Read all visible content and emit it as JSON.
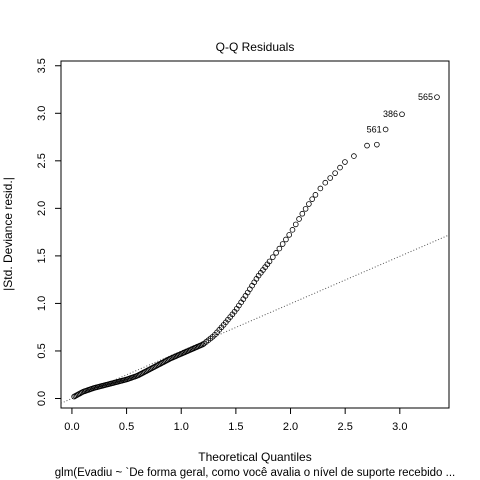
{
  "chart_data": {
    "type": "scatter",
    "title": "Q-Q Residuals",
    "xlabel": "Theoretical Quantiles",
    "ylabel": "|Std. Deviance resid.|",
    "caption": "glm(Evadiu ~ `De forma geral, como você avalia o nível de suporte recebido  ...",
    "xlim": [
      -0.1,
      3.45
    ],
    "ylim": [
      -0.1,
      3.55
    ],
    "x_ticks": [
      "0.0",
      "0.5",
      "1.0",
      "1.5",
      "2.0",
      "2.5",
      "3.0"
    ],
    "y_ticks": [
      "0.0",
      "0.5",
      "1.0",
      "1.5",
      "2.0",
      "2.5",
      "3.0",
      "3.5"
    ],
    "grid": false,
    "reference_line": {
      "x": [
        -0.1,
        3.45
      ],
      "y": [
        -0.05,
        1.72
      ],
      "style": "dotted"
    },
    "labeled_points": [
      {
        "label": "565",
        "x": 3.34,
        "y": 3.17
      },
      {
        "label": "386",
        "x": 3.02,
        "y": 2.99
      },
      {
        "label": "561",
        "x": 2.87,
        "y": 2.83
      }
    ],
    "curve": {
      "x": [
        0.02,
        0.1,
        0.2,
        0.3,
        0.4,
        0.5,
        0.6,
        0.7,
        0.8,
        0.9,
        1.0,
        1.1,
        1.2,
        1.3,
        1.4,
        1.5,
        1.6,
        1.7,
        1.8,
        1.9,
        2.0,
        2.1,
        2.2,
        2.3,
        2.4,
        2.5
      ],
      "y": [
        0.02,
        0.07,
        0.11,
        0.14,
        0.17,
        0.2,
        0.24,
        0.3,
        0.36,
        0.42,
        0.47,
        0.52,
        0.57,
        0.66,
        0.79,
        0.93,
        1.1,
        1.28,
        1.43,
        1.58,
        1.74,
        1.93,
        2.1,
        2.25,
        2.36,
        2.49
      ]
    },
    "tail_points": [
      {
        "x": 2.58,
        "y": 2.55
      },
      {
        "x": 2.7,
        "y": 2.66
      },
      {
        "x": 2.79,
        "y": 2.67
      }
    ]
  }
}
